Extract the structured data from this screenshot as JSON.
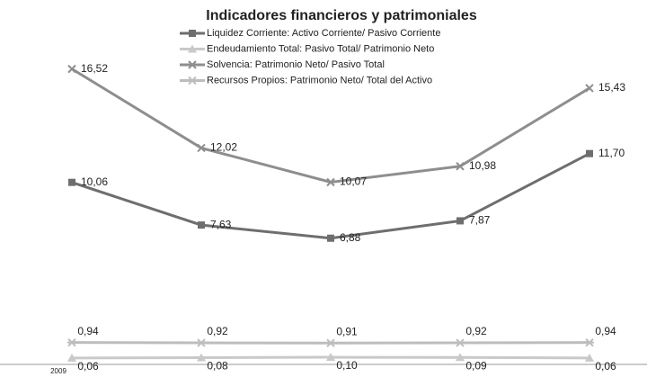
{
  "chart_data": {
    "type": "line",
    "title": "Indicadores financieros y patrimoniales",
    "categories": [
      "2009",
      null,
      null,
      null,
      null
    ],
    "ylim": [
      0,
      18.5
    ],
    "series": [
      {
        "name": "Liquidez Corriente: Activo Corriente/ Pasivo Corriente",
        "color": "#6e6e6e",
        "marker": "square",
        "values": [
          10.06,
          7.63,
          6.88,
          7.87,
          11.7
        ],
        "value_labels": [
          "10,06",
          "7,63",
          "6,88",
          "7,87",
          "11,70"
        ]
      },
      {
        "name": "Endeudamiento Total: Pasivo Total/ Patrimonio Neto",
        "color": "#c9c9c9",
        "marker": "triangle",
        "values": [
          0.06,
          0.08,
          0.1,
          0.09,
          0.06
        ],
        "value_labels": [
          "0,06",
          "0,08",
          "0,10",
          "0,09",
          "0,06"
        ]
      },
      {
        "name": "Solvencia: Patrimonio Neto/ Pasivo Total",
        "color": "#8e8e8e",
        "marker": "x",
        "values": [
          16.52,
          12.02,
          10.07,
          10.98,
          15.43
        ],
        "value_labels": [
          "16,52",
          "12,02",
          "10,07",
          "10,98",
          "15,43"
        ]
      },
      {
        "name": "Recursos Propios: Patrimonio Neto/ Total del Activo",
        "color": "#bdbdbd",
        "marker": "asterisk",
        "values": [
          0.94,
          0.92,
          0.91,
          0.92,
          0.94
        ],
        "value_labels": [
          "0,94",
          "0,92",
          "0,91",
          "0,92",
          "0,94"
        ]
      }
    ]
  }
}
